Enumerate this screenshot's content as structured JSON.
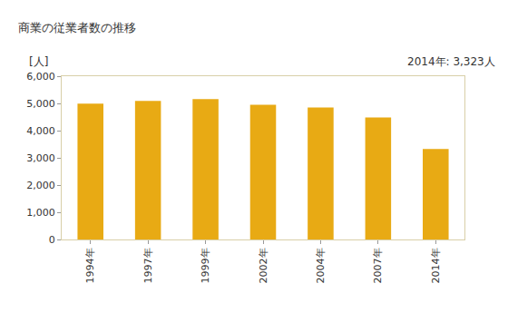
{
  "chart_data": {
    "type": "bar",
    "title": "商業の従業者数の推移",
    "ylabel": "[人]",
    "annotations": [
      "2014年: 3,323人"
    ],
    "categories": [
      "1994年",
      "1997年",
      "1999年",
      "2002年",
      "2004年",
      "2007年",
      "2014年"
    ],
    "values": [
      4990,
      5090,
      5160,
      4950,
      4850,
      4480,
      3323
    ],
    "color": "#e8aa14",
    "ylim": [
      0,
      6000
    ],
    "yticks": [
      0,
      {
        "value": 1000,
        "label": "1,000"
      },
      {
        "value": 2000,
        "label": "2,000"
      },
      {
        "value": 3000,
        "label": "3,000"
      },
      {
        "value": 4000,
        "label": "4,000"
      },
      {
        "value": 5000,
        "label": "5,000"
      },
      {
        "value": 6000,
        "label": "6,000"
      }
    ],
    "grid": false
  }
}
